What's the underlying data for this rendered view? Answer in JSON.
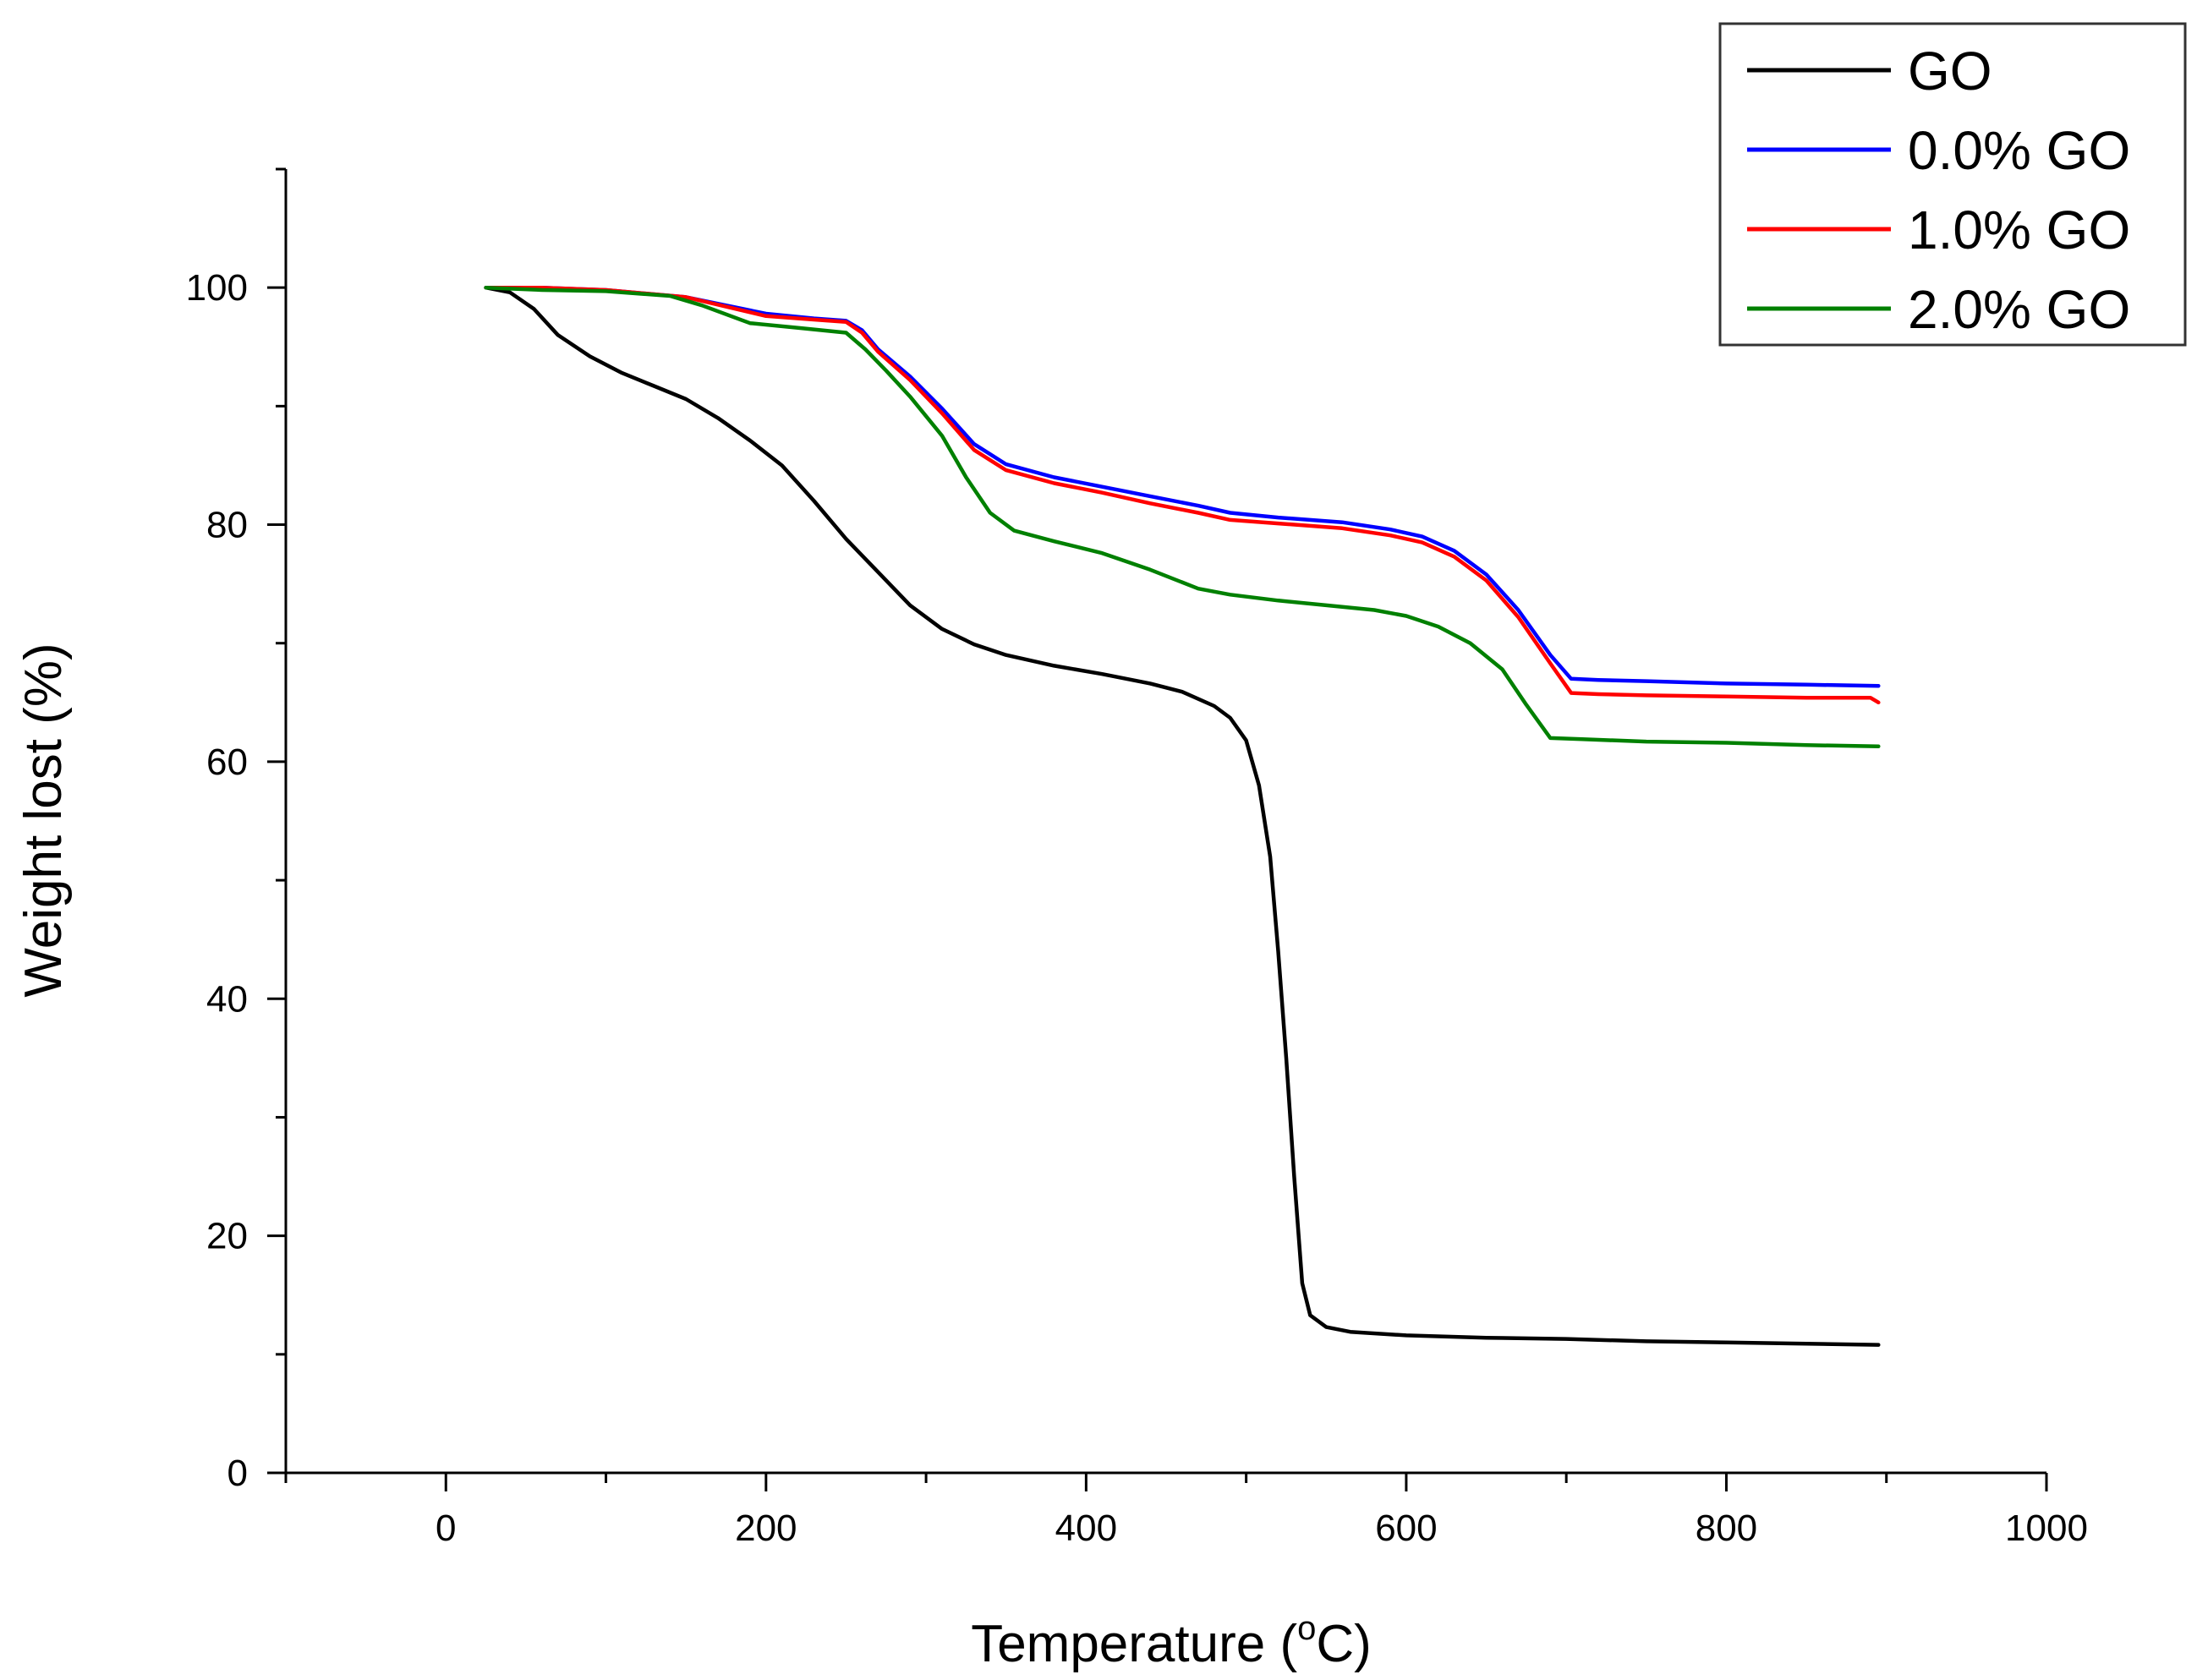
{
  "chart_data": {
    "type": "line",
    "title": "",
    "xlabel": "Temperature (",
    "xlabel_sup": "o",
    "xlabel_unit": "C)",
    "ylabel": "Weight lost (%)",
    "xlim": [
      -100,
      1000
    ],
    "ylim": [
      0,
      110
    ],
    "x_ticks": [
      0,
      200,
      400,
      600,
      800,
      1000
    ],
    "y_ticks": [
      0,
      20,
      40,
      60,
      80,
      100
    ],
    "x_tick_labels": [
      "0",
      "200",
      "400",
      "600",
      "800",
      "1000"
    ],
    "y_tick_labels": [
      "0",
      "20",
      "40",
      "60",
      "80",
      "100"
    ],
    "grid": false,
    "legend_position": "top-right",
    "series": [
      {
        "name": "GO",
        "color": "#000000",
        "points": [
          [
            25,
            100
          ],
          [
            40,
            99.6
          ],
          [
            55,
            98.2
          ],
          [
            70,
            96.0
          ],
          [
            90,
            94.2
          ],
          [
            110,
            92.8
          ],
          [
            130,
            91.7
          ],
          [
            150,
            90.6
          ],
          [
            170,
            89.0
          ],
          [
            190,
            87.1
          ],
          [
            210,
            85.0
          ],
          [
            230,
            82.0
          ],
          [
            250,
            78.8
          ],
          [
            270,
            76.0
          ],
          [
            290,
            73.2
          ],
          [
            310,
            71.2
          ],
          [
            330,
            69.9
          ],
          [
            350,
            69.0
          ],
          [
            380,
            68.1
          ],
          [
            410,
            67.4
          ],
          [
            440,
            66.6
          ],
          [
            460,
            65.9
          ],
          [
            480,
            64.7
          ],
          [
            490,
            63.7
          ],
          [
            500,
            61.8
          ],
          [
            508,
            58.0
          ],
          [
            515,
            52.0
          ],
          [
            520,
            44.0
          ],
          [
            525,
            35.0
          ],
          [
            530,
            25.0
          ],
          [
            535,
            16.0
          ],
          [
            540,
            13.3
          ],
          [
            550,
            12.3
          ],
          [
            565,
            11.9
          ],
          [
            600,
            11.6
          ],
          [
            650,
            11.4
          ],
          [
            700,
            11.3
          ],
          [
            750,
            11.1
          ],
          [
            800,
            11.0
          ],
          [
            850,
            10.9
          ],
          [
            895,
            10.8
          ]
        ]
      },
      {
        "name": "0.0% GO",
        "color": "#0000ff",
        "points": [
          [
            25,
            100
          ],
          [
            60,
            100
          ],
          [
            100,
            99.8
          ],
          [
            150,
            99.2
          ],
          [
            200,
            97.8
          ],
          [
            230,
            97.4
          ],
          [
            250,
            97.2
          ],
          [
            260,
            96.4
          ],
          [
            270,
            94.8
          ],
          [
            290,
            92.5
          ],
          [
            310,
            89.8
          ],
          [
            330,
            86.8
          ],
          [
            350,
            85.1
          ],
          [
            380,
            84.0
          ],
          [
            410,
            83.2
          ],
          [
            440,
            82.4
          ],
          [
            470,
            81.6
          ],
          [
            490,
            81.0
          ],
          [
            520,
            80.6
          ],
          [
            560,
            80.2
          ],
          [
            590,
            79.6
          ],
          [
            610,
            79.0
          ],
          [
            630,
            77.8
          ],
          [
            650,
            75.8
          ],
          [
            670,
            72.8
          ],
          [
            690,
            69.0
          ],
          [
            703,
            67.0
          ],
          [
            720,
            66.9
          ],
          [
            750,
            66.8
          ],
          [
            800,
            66.6
          ],
          [
            850,
            66.5
          ],
          [
            895,
            66.4
          ]
        ]
      },
      {
        "name": "1.0% GO",
        "color": "#ff0000",
        "points": [
          [
            25,
            100
          ],
          [
            60,
            100
          ],
          [
            100,
            99.8
          ],
          [
            150,
            99.2
          ],
          [
            200,
            97.6
          ],
          [
            230,
            97.3
          ],
          [
            250,
            97.1
          ],
          [
            260,
            96.2
          ],
          [
            270,
            94.6
          ],
          [
            290,
            92.2
          ],
          [
            310,
            89.4
          ],
          [
            330,
            86.3
          ],
          [
            350,
            84.6
          ],
          [
            380,
            83.5
          ],
          [
            410,
            82.7
          ],
          [
            440,
            81.8
          ],
          [
            470,
            81.0
          ],
          [
            490,
            80.4
          ],
          [
            520,
            80.1
          ],
          [
            560,
            79.7
          ],
          [
            590,
            79.1
          ],
          [
            610,
            78.5
          ],
          [
            630,
            77.3
          ],
          [
            650,
            75.3
          ],
          [
            670,
            72.2
          ],
          [
            690,
            68.3
          ],
          [
            703,
            65.8
          ],
          [
            720,
            65.7
          ],
          [
            750,
            65.6
          ],
          [
            800,
            65.5
          ],
          [
            850,
            65.4
          ],
          [
            890,
            65.4
          ],
          [
            895,
            65.0
          ]
        ]
      },
      {
        "name": "2.0% GO",
        "color": "#008000",
        "points": [
          [
            25,
            100
          ],
          [
            60,
            99.8
          ],
          [
            100,
            99.7
          ],
          [
            140,
            99.3
          ],
          [
            160,
            98.5
          ],
          [
            190,
            97.0
          ],
          [
            220,
            96.6
          ],
          [
            250,
            96.2
          ],
          [
            262,
            94.8
          ],
          [
            275,
            93.0
          ],
          [
            290,
            90.8
          ],
          [
            310,
            87.5
          ],
          [
            325,
            84.0
          ],
          [
            340,
            81.0
          ],
          [
            355,
            79.5
          ],
          [
            380,
            78.6
          ],
          [
            410,
            77.6
          ],
          [
            440,
            76.2
          ],
          [
            470,
            74.6
          ],
          [
            490,
            74.1
          ],
          [
            520,
            73.6
          ],
          [
            550,
            73.2
          ],
          [
            580,
            72.8
          ],
          [
            600,
            72.3
          ],
          [
            620,
            71.4
          ],
          [
            640,
            70.0
          ],
          [
            660,
            67.8
          ],
          [
            675,
            64.8
          ],
          [
            690,
            62.0
          ],
          [
            710,
            61.9
          ],
          [
            750,
            61.7
          ],
          [
            800,
            61.6
          ],
          [
            850,
            61.4
          ],
          [
            895,
            61.3
          ]
        ]
      }
    ]
  }
}
